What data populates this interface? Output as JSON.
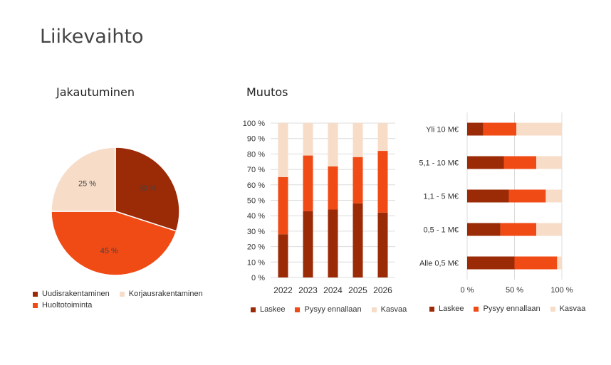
{
  "page": {
    "title": "Liikevaihto"
  },
  "colors": {
    "dark": "#9b2a07",
    "mid": "#f04a15",
    "light": "#f7dcc8"
  },
  "chart_data": [
    {
      "type": "pie",
      "title": "Jakautuminen",
      "labels": [
        "Uudisrakentaminen",
        "Korjausrakentaminen",
        "Huoltotoiminta"
      ],
      "values": [
        30,
        45,
        25
      ],
      "value_labels": [
        "30 %",
        "45 %",
        "25 %"
      ],
      "legend": "bottom"
    },
    {
      "type": "bar",
      "stacked": true,
      "percent": true,
      "title": "Muutos",
      "categories": [
        "2022",
        "2023",
        "2024",
        "2025",
        "2026"
      ],
      "series": [
        {
          "name": "Laskee",
          "values": [
            28,
            43,
            44,
            48,
            42
          ]
        },
        {
          "name": "Pysyy ennallaan",
          "values": [
            37,
            36,
            28,
            30,
            40
          ]
        },
        {
          "name": "Kasvaa",
          "values": [
            35,
            21,
            28,
            22,
            18
          ]
        }
      ],
      "ylim": [
        0,
        100
      ],
      "yticks": [
        "0 %",
        "10 %",
        "20 %",
        "30 %",
        "40 %",
        "50 %",
        "60 %",
        "70 %",
        "80 %",
        "90 %",
        "100 %"
      ],
      "grid": true,
      "legend": "bottom"
    },
    {
      "type": "bar",
      "orientation": "horizontal",
      "stacked": true,
      "percent": true,
      "categories": [
        "Yli 10 M€",
        "5,1 - 10 M€",
        "1,1 - 5 M€",
        "0,5 - 1 M€",
        "Alle 0,5 M€"
      ],
      "series": [
        {
          "name": "Laskee",
          "values": [
            17,
            39,
            44,
            35,
            50
          ]
        },
        {
          "name": "Pysyy ennallaan",
          "values": [
            35,
            34,
            39,
            38,
            45
          ]
        },
        {
          "name": "Kasvaa",
          "values": [
            48,
            27,
            17,
            27,
            5
          ]
        }
      ],
      "xlim": [
        0,
        100
      ],
      "xticks": [
        "0 %",
        "50 %",
        "100 %"
      ],
      "grid": true,
      "legend": "bottom"
    }
  ]
}
